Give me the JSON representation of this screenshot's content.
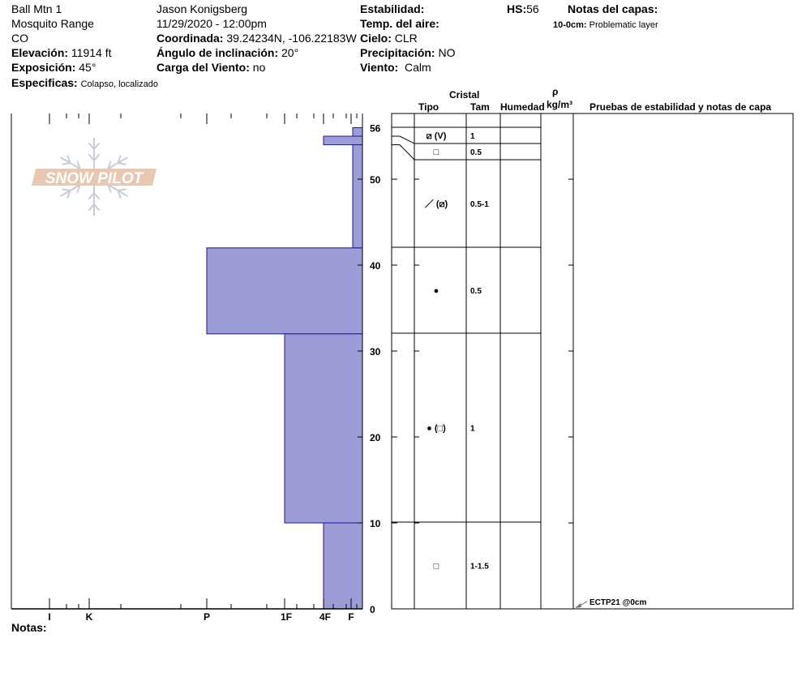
{
  "header": {
    "site": "Ball Mtn 1",
    "range": "Mosquito Range",
    "state": "CO",
    "elevation_label": "Elevación:",
    "elevation": "11914 ft",
    "aspect_label": "Exposición:",
    "aspect": "45°",
    "specifics_label": "Especificas:",
    "specifics": "Colapso, localizado",
    "observer": "Jason Konigsberg",
    "datetime": "11/29/2020 - 12:00pm",
    "coord_label": "Coordinada:",
    "coord": "39.24234N, -106.22183W",
    "slope_label": "Ángulo de inclinación:",
    "slope": "20°",
    "windload_label": "Carga del Viento:",
    "windload": "no",
    "stability_label": "Estabilidad:",
    "airtemp_label": "Temp. del aire:",
    "sky_label": "Cielo:",
    "sky": "CLR",
    "precip_label": "Precipitación:",
    "precip": "NO",
    "wind_label": "Viento:",
    "wind": "Calm",
    "hs_label": "HS:",
    "hs": "56",
    "layer_notes_label": "Notas del capas:",
    "layer_note_range": "10-0cm:",
    "layer_note": "Problematic layer"
  },
  "columns": {
    "crystal": "Cristal",
    "type": "Tipo",
    "size": "Tam",
    "moisture": "Humedad",
    "rho": "ρ",
    "density_unit": "kg/m³",
    "tests": "Pruebas de estabilidad y notas de capa"
  },
  "depth_axis": {
    "ticks": [
      "0",
      "10",
      "20",
      "30",
      "40",
      "50",
      "56"
    ],
    "max": 56
  },
  "hardness_axis": {
    "labels": [
      "I",
      "K",
      "P",
      "1F",
      "4F",
      "F"
    ]
  },
  "layers": [
    {
      "top": 56,
      "bottom": 55,
      "hardness": "F",
      "grain_type": "⧄ (V)",
      "grain_size": "1"
    },
    {
      "top": 55,
      "bottom": 54,
      "hardness": "4F",
      "grain_type": "□",
      "grain_size": "0.5"
    },
    {
      "top": 54,
      "bottom": 42,
      "hardness": "F",
      "grain_type": "／ (⧄)",
      "grain_size": "0.5-1"
    },
    {
      "top": 42,
      "bottom": 32,
      "hardness": "P",
      "grain_type": "●",
      "grain_size": "0.5"
    },
    {
      "top": 32,
      "bottom": 10,
      "hardness": "1F",
      "grain_type": "● (□)",
      "grain_size": "1"
    },
    {
      "top": 10,
      "bottom": 0,
      "hardness": "4F",
      "grain_type": "□",
      "grain_size": "1-1.5"
    }
  ],
  "stability_test": "ECTP21 @0cm",
  "notes_label": "Notas:",
  "logo_text": "SNOW PILOT",
  "colors": {
    "layer_fill": "#9c9cd6",
    "layer_stroke": "#1a1a9c",
    "logo": "#e8c8b0"
  }
}
